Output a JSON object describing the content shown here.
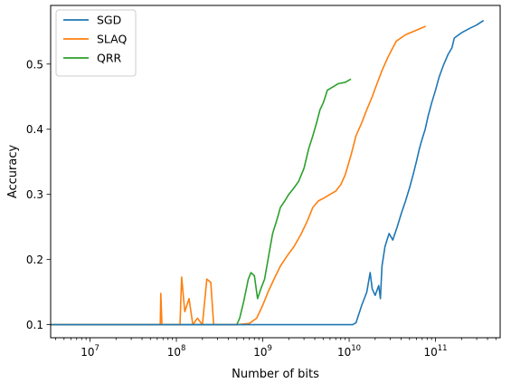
{
  "chart_data": {
    "type": "line",
    "title": "",
    "xlabel": "Number of bits",
    "ylabel": "Accuracy",
    "xscale": "log",
    "xlim": [
      3500000,
      560000000000
    ],
    "ylim": [
      0.08,
      0.59
    ],
    "grid": false,
    "legend_position": "top-left",
    "x_ticks": [
      {
        "value": 10000000,
        "base": "10",
        "exp": "7"
      },
      {
        "value": 100000000,
        "base": "10",
        "exp": "8"
      },
      {
        "value": 1000000000,
        "base": "10",
        "exp": "9"
      },
      {
        "value": 10000000000,
        "base": "10",
        "exp": "10"
      },
      {
        "value": 100000000000,
        "base": "10",
        "exp": "11"
      }
    ],
    "y_ticks": [
      {
        "value": 0.1,
        "label": "0.1"
      },
      {
        "value": 0.2,
        "label": "0.2"
      },
      {
        "value": 0.3,
        "label": "0.3"
      },
      {
        "value": 0.4,
        "label": "0.4"
      },
      {
        "value": 0.5,
        "label": "0.5"
      }
    ],
    "series": [
      {
        "name": "SGD",
        "color": "#1f77b4",
        "points": [
          [
            3500000,
            0.1
          ],
          [
            1000000000,
            0.1
          ],
          [
            5000000000,
            0.1
          ],
          [
            11000000000,
            0.1
          ],
          [
            12000000000,
            0.103
          ],
          [
            14000000000,
            0.13
          ],
          [
            16000000000,
            0.15
          ],
          [
            17500000000,
            0.18
          ],
          [
            18500000000,
            0.155
          ],
          [
            20000000000,
            0.145
          ],
          [
            22000000000,
            0.16
          ],
          [
            23000000000,
            0.14
          ],
          [
            24000000000,
            0.19
          ],
          [
            26000000000,
            0.22
          ],
          [
            29000000000,
            0.24
          ],
          [
            32000000000,
            0.23
          ],
          [
            36000000000,
            0.25
          ],
          [
            40000000000,
            0.27
          ],
          [
            45000000000,
            0.29
          ],
          [
            50000000000,
            0.31
          ],
          [
            55000000000,
            0.33
          ],
          [
            60000000000,
            0.35
          ],
          [
            65000000000,
            0.37
          ],
          [
            70000000000,
            0.385
          ],
          [
            76000000000,
            0.4
          ],
          [
            82000000000,
            0.42
          ],
          [
            90000000000,
            0.44
          ],
          [
            100000000000,
            0.46
          ],
          [
            110000000000,
            0.48
          ],
          [
            125000000000,
            0.5
          ],
          [
            140000000000,
            0.515
          ],
          [
            155000000000,
            0.525
          ],
          [
            165000000000,
            0.54
          ],
          [
            200000000000,
            0.548
          ],
          [
            250000000000,
            0.555
          ],
          [
            300000000000,
            0.56
          ],
          [
            360000000000,
            0.567
          ]
        ]
      },
      {
        "name": "SLAQ",
        "color": "#ff7f0e",
        "points": [
          [
            3500000,
            0.1
          ],
          [
            65000000,
            0.1
          ],
          [
            66000000,
            0.148
          ],
          [
            68000000,
            0.1
          ],
          [
            110000000,
            0.1
          ],
          [
            115000000,
            0.173
          ],
          [
            125000000,
            0.12
          ],
          [
            140000000,
            0.14
          ],
          [
            155000000,
            0.1
          ],
          [
            175000000,
            0.11
          ],
          [
            200000000,
            0.1
          ],
          [
            225000000,
            0.17
          ],
          [
            250000000,
            0.165
          ],
          [
            270000000,
            0.1
          ],
          [
            500000000,
            0.1
          ],
          [
            700000000,
            0.102
          ],
          [
            850000000,
            0.11
          ],
          [
            1000000000,
            0.13
          ],
          [
            1150000000,
            0.15
          ],
          [
            1350000000,
            0.17
          ],
          [
            1600000000,
            0.19
          ],
          [
            1900000000,
            0.205
          ],
          [
            2300000000,
            0.22
          ],
          [
            2800000000,
            0.24
          ],
          [
            3300000000,
            0.26
          ],
          [
            3800000000,
            0.28
          ],
          [
            4400000000,
            0.29
          ],
          [
            5200000000,
            0.295
          ],
          [
            6000000000,
            0.3
          ],
          [
            7000000000,
            0.305
          ],
          [
            8000000000,
            0.315
          ],
          [
            9000000000,
            0.33
          ],
          [
            10500000000,
            0.36
          ],
          [
            12000000000,
            0.39
          ],
          [
            14000000000,
            0.41
          ],
          [
            16000000000,
            0.43
          ],
          [
            18500000000,
            0.45
          ],
          [
            21000000000,
            0.47
          ],
          [
            24000000000,
            0.49
          ],
          [
            28000000000,
            0.51
          ],
          [
            32000000000,
            0.525
          ],
          [
            35000000000,
            0.535
          ],
          [
            45000000000,
            0.545
          ],
          [
            60000000000,
            0.552
          ],
          [
            77000000000,
            0.558
          ]
        ]
      },
      {
        "name": "QRR",
        "color": "#2ca02c",
        "points": [
          [
            3500000,
            0.1
          ],
          [
            300000000,
            0.1
          ],
          [
            500000000,
            0.1
          ],
          [
            540000000,
            0.11
          ],
          [
            600000000,
            0.135
          ],
          [
            680000000,
            0.17
          ],
          [
            730000000,
            0.18
          ],
          [
            800000000,
            0.175
          ],
          [
            870000000,
            0.14
          ],
          [
            950000000,
            0.155
          ],
          [
            1050000000,
            0.17
          ],
          [
            1150000000,
            0.2
          ],
          [
            1300000000,
            0.24
          ],
          [
            1450000000,
            0.26
          ],
          [
            1600000000,
            0.28
          ],
          [
            1800000000,
            0.29
          ],
          [
            2000000000,
            0.3
          ],
          [
            2300000000,
            0.31
          ],
          [
            2600000000,
            0.32
          ],
          [
            3000000000,
            0.34
          ],
          [
            3400000000,
            0.37
          ],
          [
            3800000000,
            0.39
          ],
          [
            4200000000,
            0.41
          ],
          [
            4600000000,
            0.43
          ],
          [
            5000000000,
            0.44
          ],
          [
            5300000000,
            0.45
          ],
          [
            5600000000,
            0.46
          ],
          [
            6500000000,
            0.465
          ],
          [
            7500000000,
            0.47
          ],
          [
            9000000000,
            0.472
          ],
          [
            10500000000,
            0.477
          ]
        ]
      }
    ]
  }
}
